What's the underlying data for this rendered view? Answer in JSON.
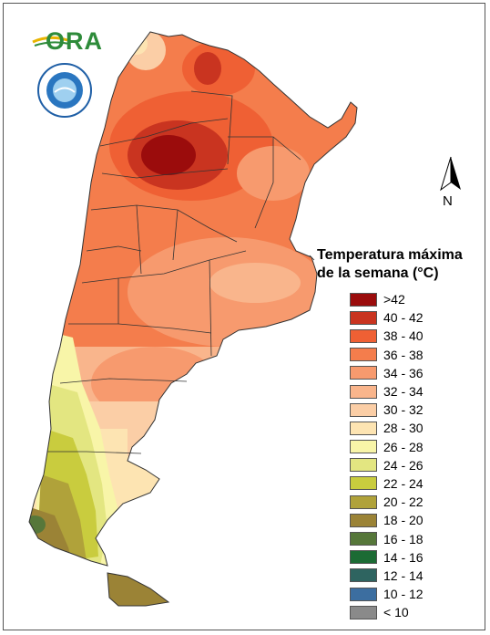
{
  "logos": {
    "ora_text": "ORA"
  },
  "north_label": "N",
  "legend": {
    "title_line1": "Temperatura máxima",
    "title_line2": "de la semana (°C)",
    "items": [
      {
        "label": ">42",
        "color": "#9b0c0c"
      },
      {
        "label": "40 - 42",
        "color": "#c93420"
      },
      {
        "label": "38 - 40",
        "color": "#ef6034"
      },
      {
        "label": "36 - 38",
        "color": "#f47d4c"
      },
      {
        "label": "34 - 36",
        "color": "#f79a6e"
      },
      {
        "label": "32 - 34",
        "color": "#f9b58c"
      },
      {
        "label": "30 - 32",
        "color": "#fbcea6"
      },
      {
        "label": "28 - 30",
        "color": "#fde4b2"
      },
      {
        "label": "26 - 28",
        "color": "#f8f5a8"
      },
      {
        "label": "24 - 26",
        "color": "#e3e681"
      },
      {
        "label": "22 - 24",
        "color": "#c9cc3e"
      },
      {
        "label": "20 - 22",
        "color": "#b0a23a"
      },
      {
        "label": "18 - 20",
        "color": "#9b8336"
      },
      {
        "label": "16 - 18",
        "color": "#56773a"
      },
      {
        "label": "14 - 16",
        "color": "#1c6b34"
      },
      {
        "label": "12 - 14",
        "color": "#2e6460"
      },
      {
        "label": "10 - 12",
        "color": "#3c6ea0"
      },
      {
        "label": "< 10",
        "color": "#8a8a8a"
      }
    ]
  }
}
